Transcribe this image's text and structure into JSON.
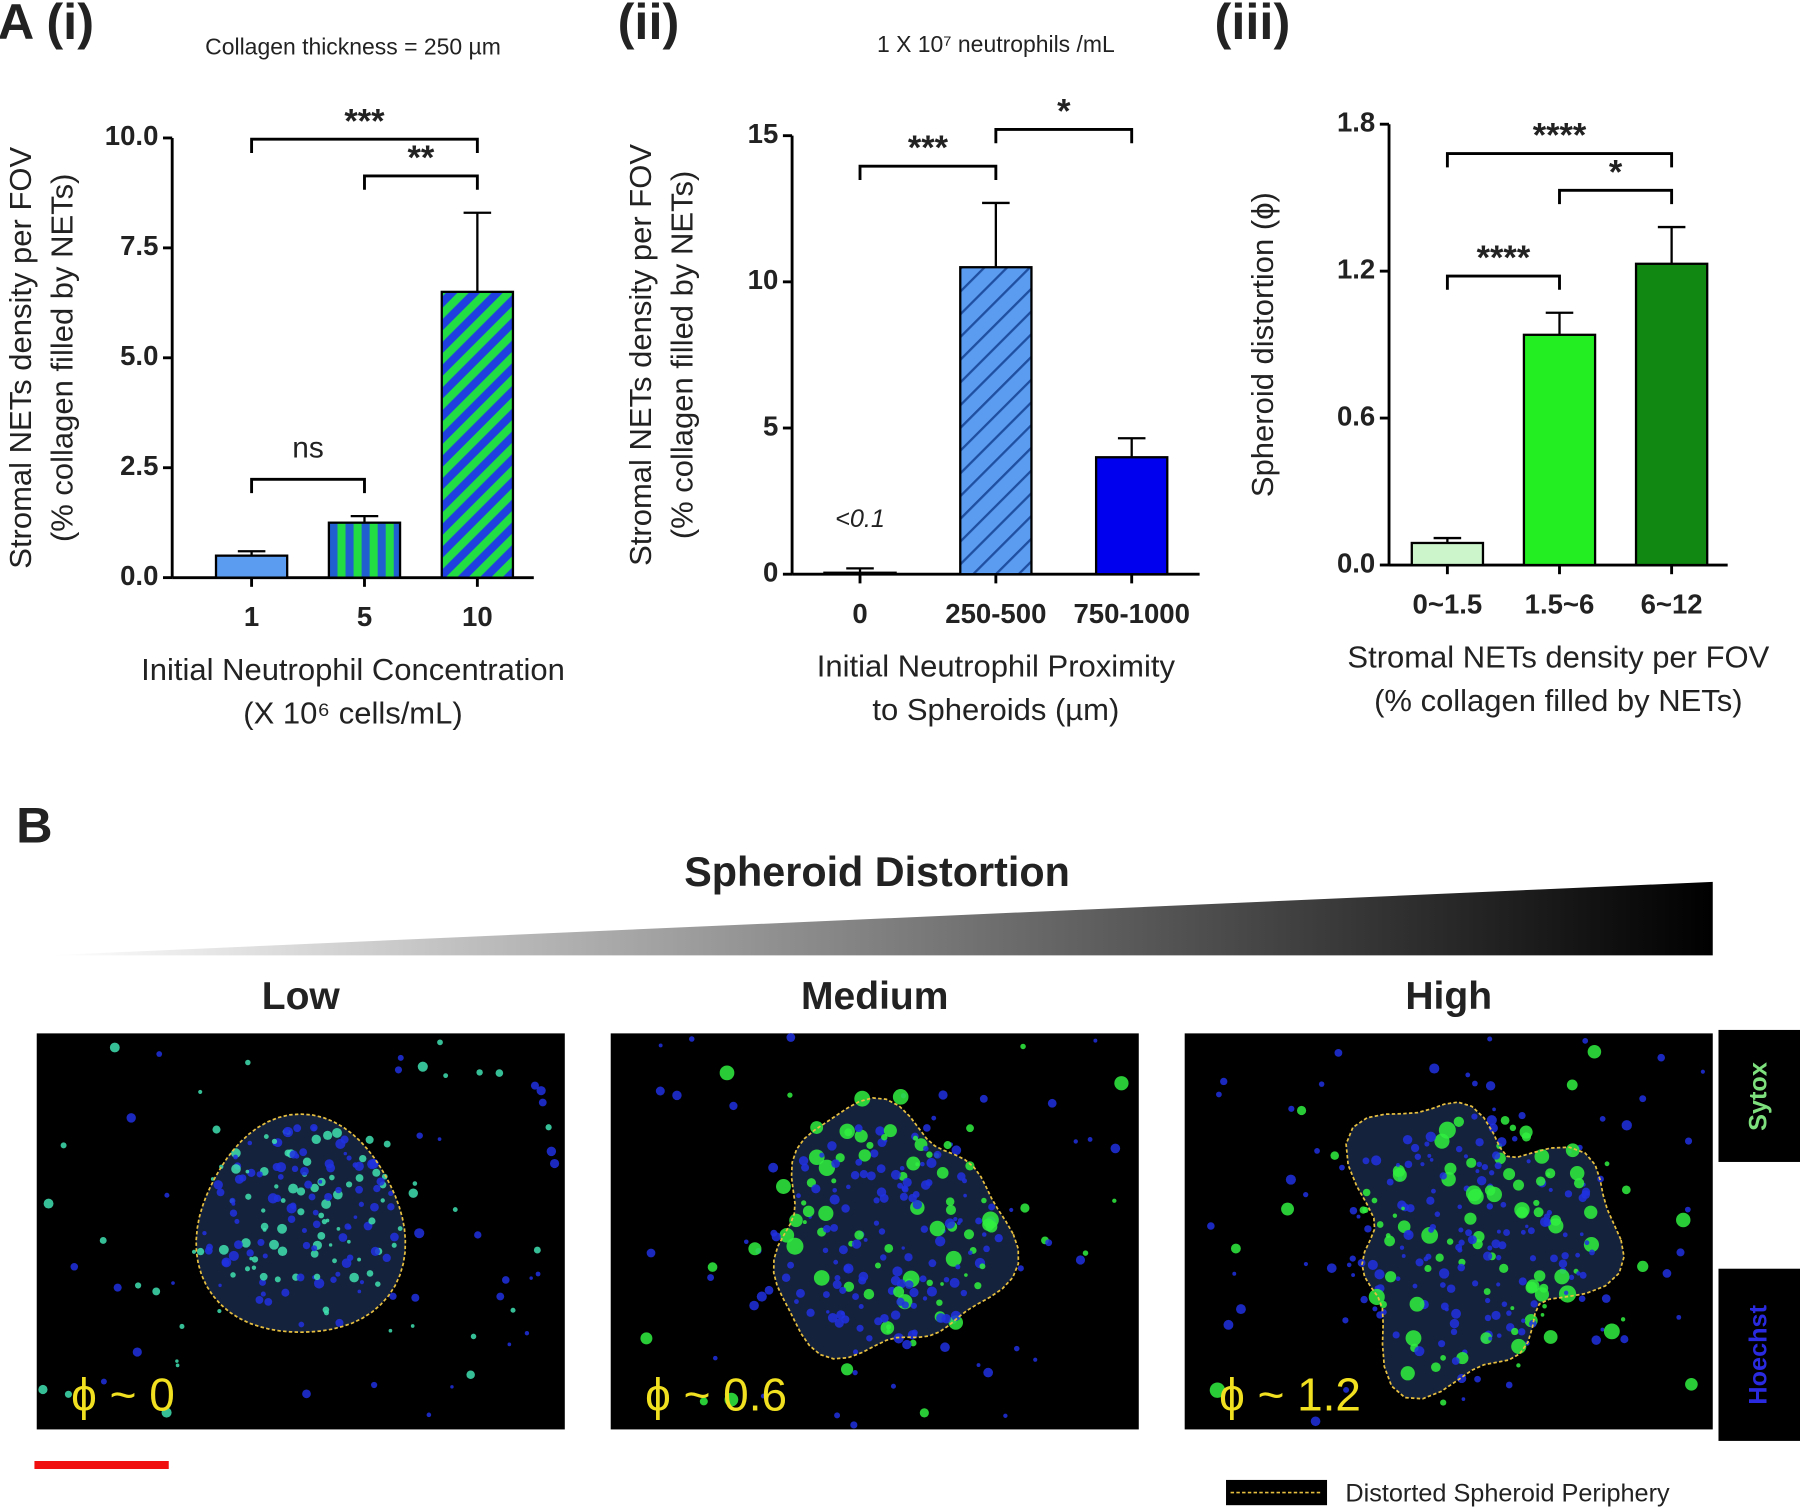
{
  "chart_data": [
    {
      "type": "bar",
      "panel_label": "A (i)",
      "title": "Collagen thickness = 250 µm",
      "categories": [
        "1",
        "5",
        "10"
      ],
      "values": [
        0.5,
        1.25,
        6.5
      ],
      "errors": [
        0.1,
        0.15,
        1.8
      ],
      "colors": [
        "#5b9bf0",
        "#1f5fd0",
        "#1f3fe0"
      ],
      "hatch_colors": [
        null,
        "#22dd44",
        "#22dd44"
      ],
      "ylim": [
        0,
        10
      ],
      "yticks": [
        {
          "value": 0,
          "label": "0.0"
        },
        2.5,
        {
          "value": 5,
          "label": "5.0"
        },
        7.5,
        {
          "value": 10,
          "label": "10.0"
        }
      ],
      "ylabel": [
        "Stromal NETs density per FOV",
        "(% collagen filled by NETs)"
      ],
      "xlabel": [
        "Initial Neutrophil Concentration",
        "(X 10⁶ cells/mL)"
      ],
      "significance": [
        {
          "from": 0,
          "to": 1,
          "label": "ns"
        },
        {
          "from": 1,
          "to": 2,
          "label": "**"
        },
        {
          "from": 0,
          "to": 2,
          "label": "***"
        }
      ]
    },
    {
      "type": "bar",
      "panel_label": "(ii)",
      "title": "1 X 10⁷ neutrophils /mL",
      "categories": [
        "0",
        "250-500",
        "750-1000"
      ],
      "values": [
        0.05,
        10.5,
        4.0
      ],
      "errors": [
        0.15,
        2.2,
        0.65
      ],
      "annotations": [
        "<0.1",
        null,
        null
      ],
      "colors": [
        "#5b9bf0",
        "#5b9bf0",
        "#0000ee"
      ],
      "hatch_colors": [
        null,
        "#1f4fa0",
        null
      ],
      "ylim": [
        0,
        15
      ],
      "yticks": [
        0,
        5,
        10,
        15
      ],
      "ylabel": [
        "Stromal NETs density per FOV",
        "(% collagen filled by NETs)"
      ],
      "xlabel": [
        "Initial Neutrophil Proximity",
        "to Spheroids (µm)"
      ],
      "significance": [
        {
          "from": 0,
          "to": 1,
          "label": "***"
        },
        {
          "from": 1,
          "to": 2,
          "label": "*"
        }
      ]
    },
    {
      "type": "bar",
      "panel_label": "(iii)",
      "categories": [
        "0~1.5",
        "1.5~6",
        "6~12"
      ],
      "values": [
        0.09,
        0.94,
        1.23
      ],
      "errors": [
        0.02,
        0.09,
        0.15
      ],
      "colors": [
        "#ccf5cc",
        "#22ee22",
        "#118811"
      ],
      "hatch_colors": [
        null,
        null,
        null
      ],
      "ylim": [
        0,
        1.8
      ],
      "yticks": [
        {
          "value": 0,
          "label": "0.0"
        },
        0.6,
        1.2,
        1.8
      ],
      "ylabel": [
        "Spheroid distortion (ϕ)"
      ],
      "xlabel": [
        "Stromal NETs density per FOV",
        "(% collagen filled by NETs)"
      ],
      "significance": [
        {
          "from": 0,
          "to": 1,
          "label": "****"
        },
        {
          "from": 1,
          "to": 2,
          "label": "*"
        },
        {
          "from": 0,
          "to": 2,
          "label": "****"
        }
      ]
    }
  ],
  "panel_b": {
    "label": "B",
    "title": "Spheroid Distortion",
    "images": [
      {
        "label": "Low",
        "phi": "ϕ ~ 0"
      },
      {
        "label": "Medium",
        "phi": "ϕ ~ 0.6"
      },
      {
        "label": "High",
        "phi": "ϕ ~ 1.2"
      }
    ],
    "channels": [
      "Sytox",
      "Hoechst"
    ],
    "legend": "Distorted Spheroid Periphery"
  }
}
